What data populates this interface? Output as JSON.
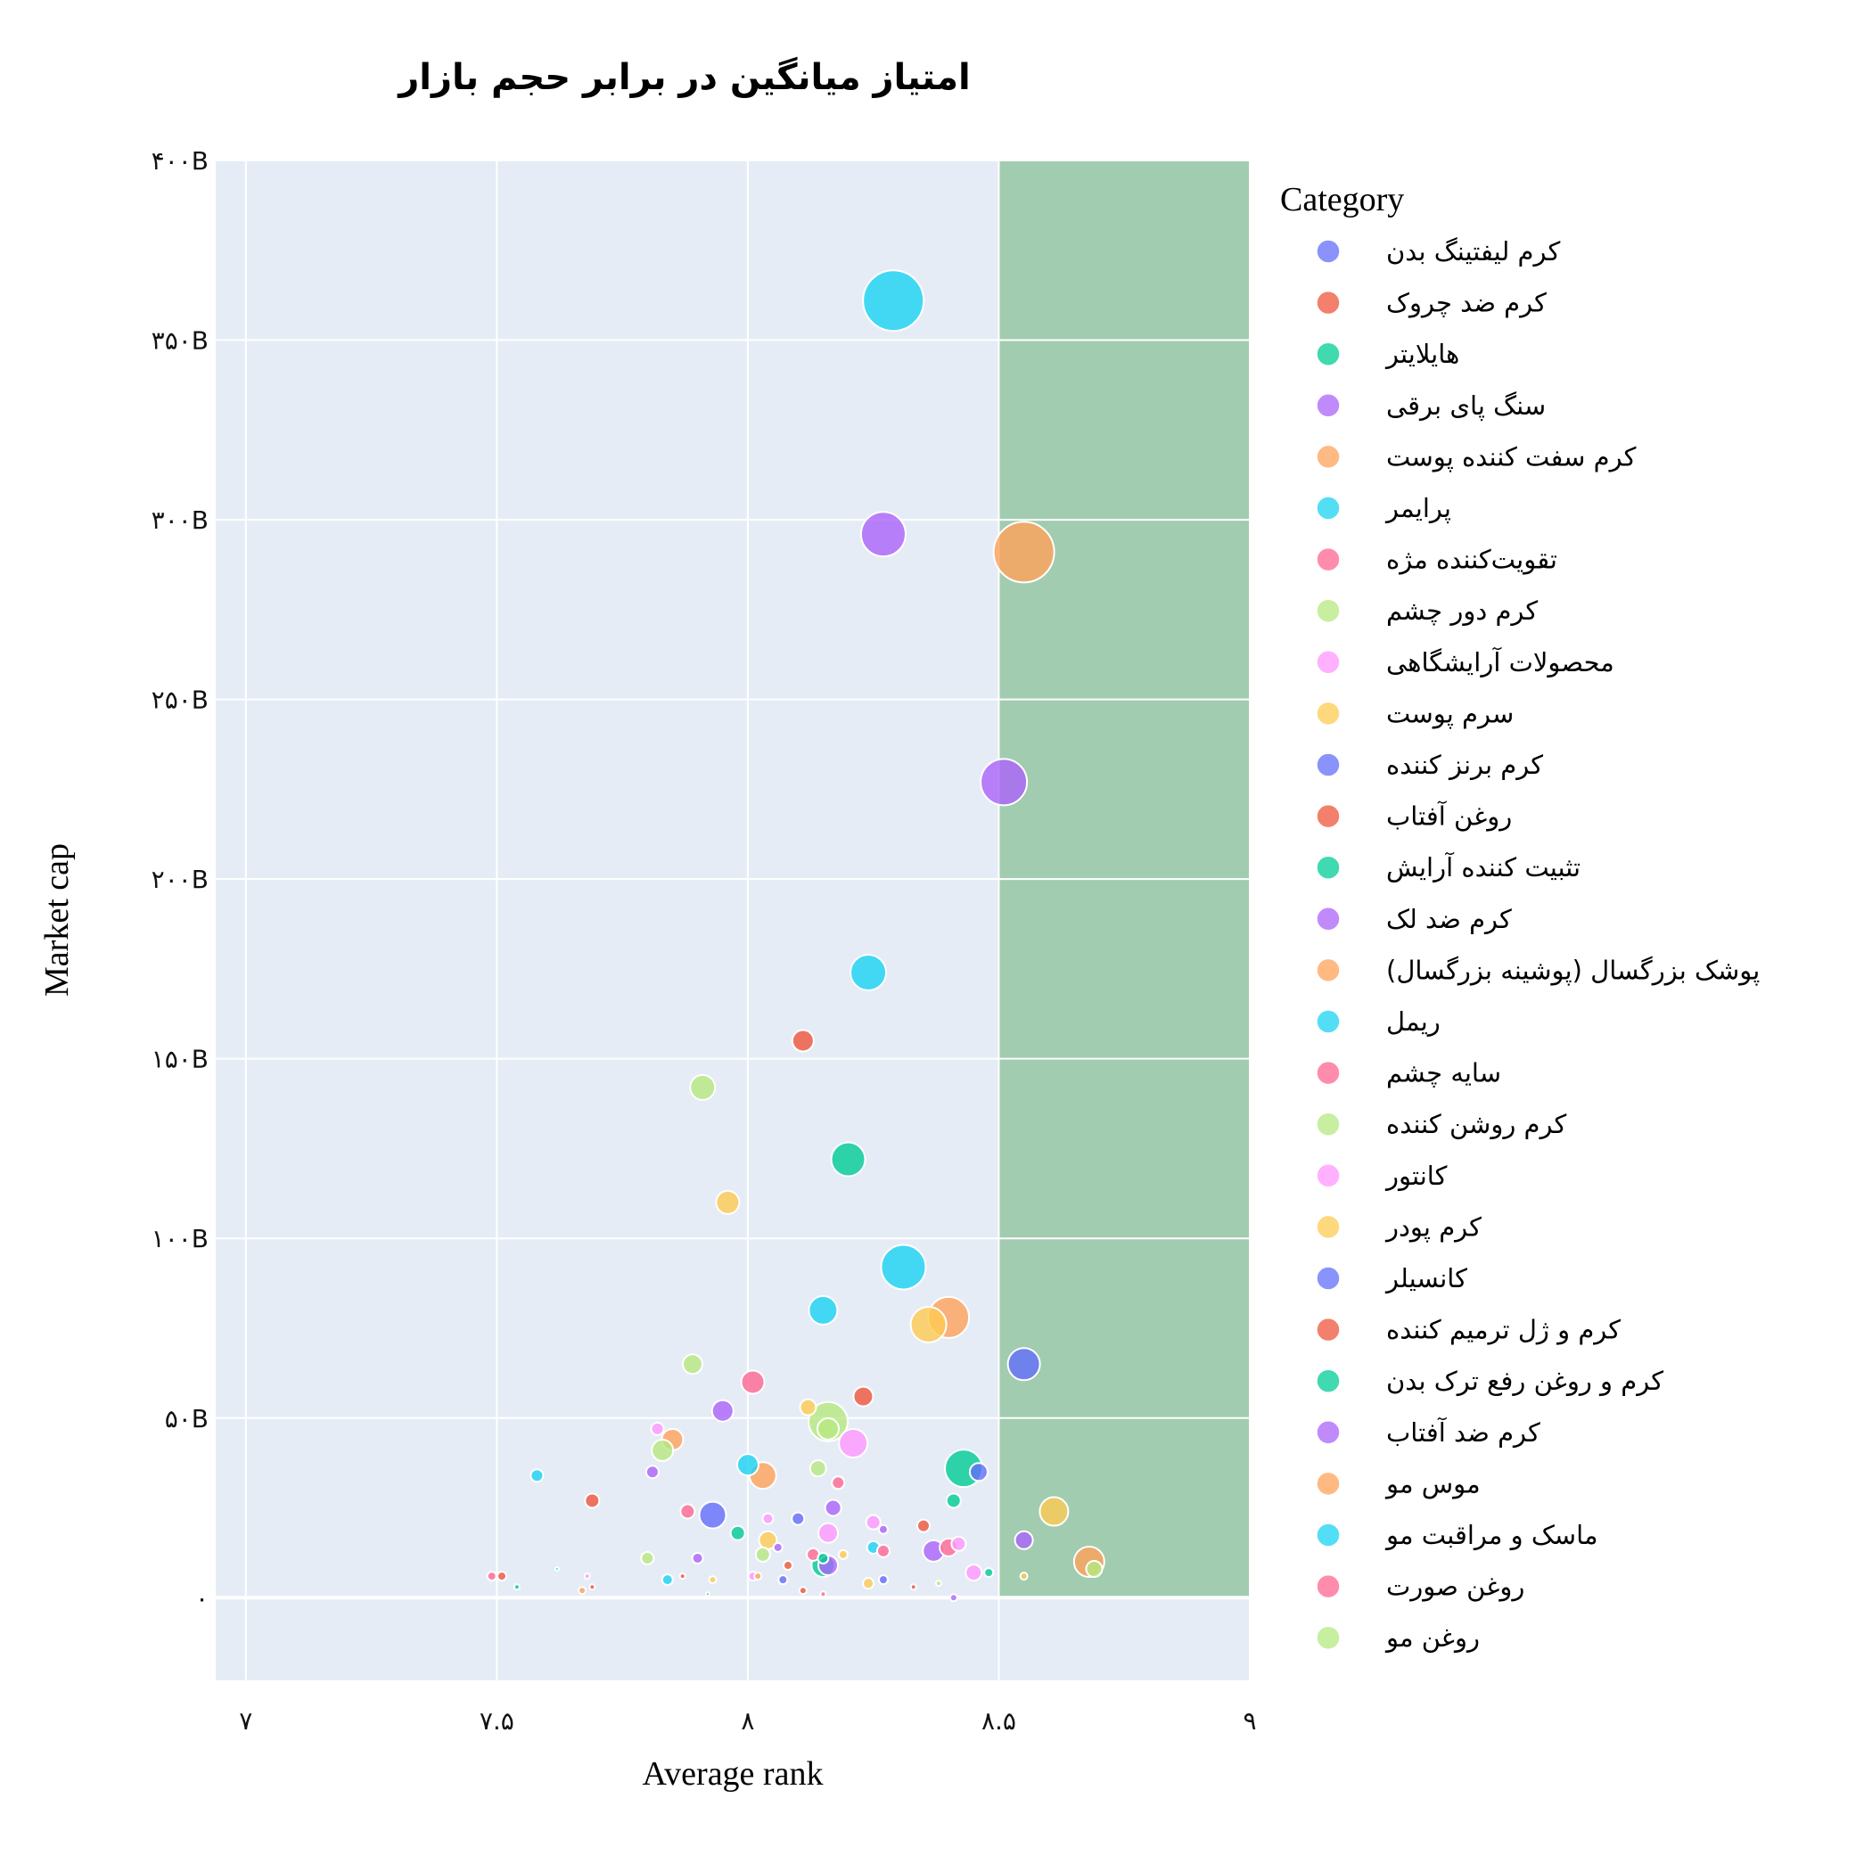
{
  "chart_data": {
    "type": "scatter",
    "title": "امتیاز میانگین در برابر حجم بازار",
    "xlabel": "Average rank",
    "ylabel": "Market cap",
    "xlim": [
      6.94,
      9
    ],
    "ylim": [
      -23,
      400
    ],
    "x_ticks": [
      {
        "value": 7,
        "label": "۷"
      },
      {
        "value": 7.5,
        "label": "۷.۵"
      },
      {
        "value": 8,
        "label": "۸"
      },
      {
        "value": 8.5,
        "label": "۸.۵"
      },
      {
        "value": 9,
        "label": "۹"
      }
    ],
    "y_ticks": [
      {
        "value": 0,
        "label": "۰"
      },
      {
        "value": 50,
        "label": "۵۰B"
      },
      {
        "value": 100,
        "label": "۱۰۰B"
      },
      {
        "value": 150,
        "label": "۱۵۰B"
      },
      {
        "value": 200,
        "label": "۲۰۰B"
      },
      {
        "value": 250,
        "label": "۲۵۰B"
      },
      {
        "value": 300,
        "label": "۳۰۰B"
      },
      {
        "value": 350,
        "label": "۳۵۰B"
      },
      {
        "value": 400,
        "label": "۴۰۰B"
      }
    ],
    "highlight_region": {
      "x_from": 8.5,
      "x_to": 9,
      "y_from": 0,
      "y_to": 400,
      "color": "#a1ccaf"
    },
    "plot_background": "#e5ecf6",
    "legend_title": "Category",
    "series": [
      {
        "name": "کرم لیفتینگ بدن",
        "color": "#636efa"
      },
      {
        "name": "کرم ضد چروک",
        "color": "#ef553b"
      },
      {
        "name": "هایلایتر",
        "color": "#00cc96"
      },
      {
        "name": "سنگ پای برقی",
        "color": "#ab63fa"
      },
      {
        "name": "کرم سفت کننده پوست",
        "color": "#ffa15a"
      },
      {
        "name": "پرایمر",
        "color": "#19d3f3"
      },
      {
        "name": "تقویت‌کننده مژه",
        "color": "#ff6692"
      },
      {
        "name": "کرم دور چشم",
        "color": "#b6e880"
      },
      {
        "name": "محصولات آرایشگاهی",
        "color": "#ff97ff"
      },
      {
        "name": "سرم پوست",
        "color": "#fecb52"
      },
      {
        "name": "کرم برنز کننده",
        "color": "#636efa"
      },
      {
        "name": "روغن آفتاب",
        "color": "#ef553b"
      },
      {
        "name": "تثبیت کننده آرایش",
        "color": "#00cc96"
      },
      {
        "name": "کرم ضد لک",
        "color": "#ab63fa"
      },
      {
        "name": "پوشک بزرگسال (پوشینه بزرگسال)",
        "color": "#ffa15a"
      },
      {
        "name": "ریمل",
        "color": "#19d3f3"
      },
      {
        "name": "سایه چشم",
        "color": "#ff6692"
      },
      {
        "name": "کرم روشن کننده",
        "color": "#b6e880"
      },
      {
        "name": "کانتور",
        "color": "#ff97ff"
      },
      {
        "name": "کرم پودر",
        "color": "#fecb52"
      },
      {
        "name": "کانسیلر",
        "color": "#636efa"
      },
      {
        "name": "کرم و ژل ترمیم کننده",
        "color": "#ef553b"
      },
      {
        "name": "کرم و روغن رفع ترک بدن",
        "color": "#00cc96"
      },
      {
        "name": "کرم ضد آفتاب",
        "color": "#ab63fa"
      },
      {
        "name": "موس مو",
        "color": "#ffa15a"
      },
      {
        "name": "ماسک و مراقبت مو",
        "color": "#19d3f3"
      },
      {
        "name": "روغن صورت",
        "color": "#ff6692"
      },
      {
        "name": "روغن مو",
        "color": "#b6e880"
      }
    ],
    "points": [
      {
        "x": 8.29,
        "y": 361,
        "r": 34,
        "color": "#19d3f3"
      },
      {
        "x": 8.55,
        "y": 291,
        "r": 34,
        "color": "#ffa15a"
      },
      {
        "x": 8.27,
        "y": 296,
        "r": 25,
        "color": "#ab63fa"
      },
      {
        "x": 8.51,
        "y": 227,
        "r": 26,
        "color": "#ab63fa"
      },
      {
        "x": 8.24,
        "y": 174,
        "r": 20,
        "color": "#19d3f3"
      },
      {
        "x": 8.11,
        "y": 155,
        "r": 12,
        "color": "#ef553b"
      },
      {
        "x": 7.91,
        "y": 142,
        "r": 14,
        "color": "#b6e880"
      },
      {
        "x": 8.2,
        "y": 122,
        "r": 19,
        "color": "#00cc96"
      },
      {
        "x": 7.96,
        "y": 110,
        "r": 13,
        "color": "#fecb52"
      },
      {
        "x": 8.31,
        "y": 92,
        "r": 25,
        "color": "#19d3f3"
      },
      {
        "x": 8.4,
        "y": 78,
        "r": 23,
        "color": "#ffa15a"
      },
      {
        "x": 8.36,
        "y": 76,
        "r": 20,
        "color": "#fecb52"
      },
      {
        "x": 8.15,
        "y": 80,
        "r": 16,
        "color": "#19d3f3"
      },
      {
        "x": 8.55,
        "y": 65,
        "r": 18,
        "color": "#636efa"
      },
      {
        "x": 7.89,
        "y": 65,
        "r": 11,
        "color": "#b6e880"
      },
      {
        "x": 8.01,
        "y": 60,
        "r": 13,
        "color": "#ff6692"
      },
      {
        "x": 8.23,
        "y": 56,
        "r": 11,
        "color": "#ef553b"
      },
      {
        "x": 7.95,
        "y": 52,
        "r": 12,
        "color": "#ab63fa"
      },
      {
        "x": 8.12,
        "y": 53,
        "r": 9,
        "color": "#fecb52"
      },
      {
        "x": 8.16,
        "y": 49,
        "r": 22,
        "color": "#b6e880"
      },
      {
        "x": 8.16,
        "y": 47,
        "r": 12,
        "color": "#b6e880"
      },
      {
        "x": 8.21,
        "y": 43,
        "r": 16,
        "color": "#ff97ff"
      },
      {
        "x": 7.85,
        "y": 44,
        "r": 12,
        "color": "#ffa15a"
      },
      {
        "x": 7.83,
        "y": 41,
        "r": 12,
        "color": "#b6e880"
      },
      {
        "x": 7.82,
        "y": 47,
        "r": 7,
        "color": "#ff97ff"
      },
      {
        "x": 8.43,
        "y": 36,
        "r": 21,
        "color": "#00cc96"
      },
      {
        "x": 8.46,
        "y": 35,
        "r": 10,
        "color": "#636efa"
      },
      {
        "x": 8.0,
        "y": 37,
        "r": 12,
        "color": "#19d3f3"
      },
      {
        "x": 8.03,
        "y": 34,
        "r": 15,
        "color": "#ffa15a"
      },
      {
        "x": 8.14,
        "y": 36,
        "r": 9,
        "color": "#b6e880"
      },
      {
        "x": 8.18,
        "y": 32,
        "r": 7,
        "color": "#ff6692"
      },
      {
        "x": 7.81,
        "y": 35,
        "r": 7,
        "color": "#ab63fa"
      },
      {
        "x": 7.58,
        "y": 34,
        "r": 7,
        "color": "#19d3f3"
      },
      {
        "x": 7.69,
        "y": 27,
        "r": 8,
        "color": "#ef553b"
      },
      {
        "x": 7.93,
        "y": 23,
        "r": 15,
        "color": "#636efa"
      },
      {
        "x": 7.88,
        "y": 24,
        "r": 8,
        "color": "#ff6692"
      },
      {
        "x": 8.04,
        "y": 22,
        "r": 6,
        "color": "#ff97ff"
      },
      {
        "x": 8.1,
        "y": 22,
        "r": 7,
        "color": "#636efa"
      },
      {
        "x": 8.17,
        "y": 25,
        "r": 9,
        "color": "#ab63fa"
      },
      {
        "x": 8.25,
        "y": 21,
        "r": 8,
        "color": "#ff97ff"
      },
      {
        "x": 8.27,
        "y": 19,
        "r": 5,
        "color": "#ab63fa"
      },
      {
        "x": 8.35,
        "y": 20,
        "r": 7,
        "color": "#ef553b"
      },
      {
        "x": 8.41,
        "y": 27,
        "r": 8,
        "color": "#00cc96"
      },
      {
        "x": 8.61,
        "y": 24,
        "r": 16,
        "color": "#fecb52"
      },
      {
        "x": 8.55,
        "y": 16,
        "r": 10,
        "color": "#ab63fa"
      },
      {
        "x": 7.98,
        "y": 18,
        "r": 8,
        "color": "#00cc96"
      },
      {
        "x": 8.04,
        "y": 16,
        "r": 10,
        "color": "#fecb52"
      },
      {
        "x": 8.03,
        "y": 12,
        "r": 8,
        "color": "#b6e880"
      },
      {
        "x": 8.06,
        "y": 14,
        "r": 5,
        "color": "#ab63fa"
      },
      {
        "x": 8.16,
        "y": 18,
        "r": 11,
        "color": "#ff97ff"
      },
      {
        "x": 8.13,
        "y": 12,
        "r": 7,
        "color": "#ff6692"
      },
      {
        "x": 8.15,
        "y": 11,
        "r": 6,
        "color": "#00cc96"
      },
      {
        "x": 8.15,
        "y": 9,
        "r": 13,
        "color": "#00cc96"
      },
      {
        "x": 8.16,
        "y": 9,
        "r": 11,
        "color": "#ab63fa"
      },
      {
        "x": 8.19,
        "y": 12,
        "r": 5,
        "color": "#fecb52"
      },
      {
        "x": 8.25,
        "y": 14,
        "r": 7,
        "color": "#19d3f3"
      },
      {
        "x": 8.27,
        "y": 13,
        "r": 7,
        "color": "#ff6692"
      },
      {
        "x": 8.37,
        "y": 13,
        "r": 12,
        "color": "#ab63fa"
      },
      {
        "x": 8.4,
        "y": 14,
        "r": 10,
        "color": "#ff6692"
      },
      {
        "x": 8.42,
        "y": 15,
        "r": 8,
        "color": "#ff97ff"
      },
      {
        "x": 8.45,
        "y": 7,
        "r": 9,
        "color": "#ff97ff"
      },
      {
        "x": 8.48,
        "y": 7,
        "r": 5,
        "color": "#00cc96"
      },
      {
        "x": 8.68,
        "y": 10,
        "r": 17,
        "color": "#ffa15a"
      },
      {
        "x": 8.69,
        "y": 8,
        "r": 9,
        "color": "#b6e880"
      },
      {
        "x": 8.55,
        "y": 6,
        "r": 4,
        "color": "#fecb52"
      },
      {
        "x": 7.8,
        "y": 11,
        "r": 7,
        "color": "#b6e880"
      },
      {
        "x": 7.9,
        "y": 11,
        "r": 6,
        "color": "#ab63fa"
      },
      {
        "x": 8.08,
        "y": 9,
        "r": 5,
        "color": "#ef553b"
      },
      {
        "x": 7.49,
        "y": 6,
        "r": 5,
        "color": "#ff6692"
      },
      {
        "x": 7.51,
        "y": 6,
        "r": 5,
        "color": "#ef553b"
      },
      {
        "x": 7.54,
        "y": 3,
        "r": 3,
        "color": "#00cc96"
      },
      {
        "x": 7.62,
        "y": 8,
        "r": 2,
        "color": "#19d3f3"
      },
      {
        "x": 7.67,
        "y": 2,
        "r": 4,
        "color": "#ffa15a"
      },
      {
        "x": 7.69,
        "y": 3,
        "r": 3,
        "color": "#ef553b"
      },
      {
        "x": 7.68,
        "y": 6,
        "r": 3,
        "color": "#ff97ff"
      },
      {
        "x": 7.84,
        "y": 5,
        "r": 6,
        "color": "#19d3f3"
      },
      {
        "x": 7.87,
        "y": 6,
        "r": 3,
        "color": "#ef553b"
      },
      {
        "x": 7.93,
        "y": 5,
        "r": 4,
        "color": "#fecb52"
      },
      {
        "x": 8.01,
        "y": 6,
        "r": 5,
        "color": "#ff97ff"
      },
      {
        "x": 8.02,
        "y": 6,
        "r": 4,
        "color": "#ffa15a"
      },
      {
        "x": 8.07,
        "y": 5,
        "r": 5,
        "color": "#636efa"
      },
      {
        "x": 8.11,
        "y": 2,
        "r": 4,
        "color": "#ef553b"
      },
      {
        "x": 8.24,
        "y": 4,
        "r": 6,
        "color": "#fecb52"
      },
      {
        "x": 8.27,
        "y": 5,
        "r": 5,
        "color": "#636efa"
      },
      {
        "x": 8.33,
        "y": 3,
        "r": 3,
        "color": "#ef553b"
      },
      {
        "x": 8.38,
        "y": 4,
        "r": 3,
        "color": "#b6e880"
      },
      {
        "x": 8.41,
        "y": 0,
        "r": 4,
        "color": "#ab63fa"
      },
      {
        "x": 7.92,
        "y": 1,
        "r": 2,
        "color": "#00cc96"
      },
      {
        "x": 8.15,
        "y": 1,
        "r": 3,
        "color": "#ff6692"
      }
    ]
  }
}
